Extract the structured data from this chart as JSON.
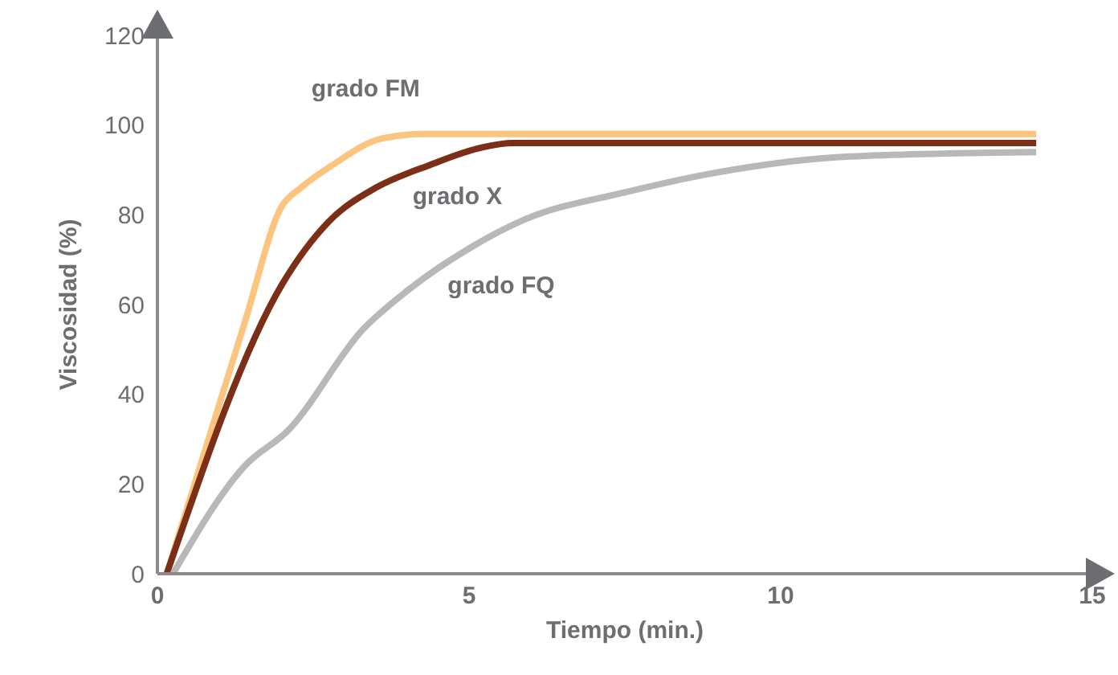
{
  "chart_data": {
    "type": "line",
    "xlabel": "Tiempo (min.)",
    "ylabel": "Viscosidad (%)",
    "xlim": [
      0,
      15
    ],
    "xticks": [
      0,
      5,
      10,
      15
    ],
    "ylim": [
      0,
      120
    ],
    "yticks": [
      0,
      20,
      40,
      60,
      80,
      100,
      120
    ],
    "grid": false,
    "legend": false,
    "marker": "none",
    "line_style": "solid",
    "series": [
      {
        "name": "grado FM",
        "color": "#fcc57f",
        "x": [
          0.15,
          1.4,
          2.0,
          2.3,
          2.8,
          3.6,
          4.25,
          14.1
        ],
        "values": [
          0,
          56,
          82,
          86,
          91,
          97,
          98,
          98
        ]
      },
      {
        "name": "grado X",
        "color": "#7b2f16",
        "x": [
          0.15,
          2.0,
          2.75,
          3.5,
          4.35,
          5.2,
          5.7,
          14.1
        ],
        "values": [
          0,
          64.5,
          78.5,
          86,
          91,
          95,
          96,
          96
        ]
      },
      {
        "name": "grado FQ",
        "color": "#b8b8b8",
        "x": [
          0.25,
          1.4,
          2.1,
          3.3,
          4.0,
          5.0,
          5.9,
          7.5,
          8.8,
          11.1,
          14.1
        ],
        "values": [
          0,
          24,
          32,
          54.5,
          63,
          72.5,
          79,
          85,
          89,
          93,
          94
        ]
      }
    ]
  }
}
